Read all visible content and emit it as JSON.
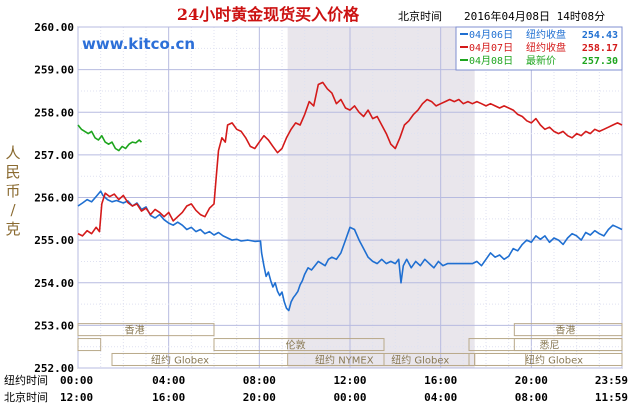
{
  "chart_data": {
    "type": "line",
    "title": "24小时黄金现货买入价格",
    "timestamp_label": "北京时间",
    "timestamp": "2016年04月08日 14时08分",
    "watermark": "www.kitco.cn",
    "ylabel": "人民币/克",
    "ylim": [
      252.0,
      260.0
    ],
    "y_ticks": [
      "252.00",
      "253.00",
      "254.00",
      "255.00",
      "256.00",
      "257.00",
      "258.00",
      "259.00",
      "260.00"
    ],
    "x_rows": [
      {
        "label": "纽约时间",
        "ticks": [
          "00:00",
          "04:00",
          "08:00",
          "12:00",
          "16:00",
          "20:00",
          "23:59"
        ]
      },
      {
        "label": "北京时间",
        "ticks": [
          "12:00",
          "16:00",
          "20:00",
          "00:00",
          "04:00",
          "08:00",
          "11:59"
        ]
      }
    ],
    "x_range_hours": [
      0,
      24
    ],
    "shaded_hours": [
      9.25,
      17.5
    ],
    "grid": true,
    "legend_position": "top-right",
    "legend": [
      {
        "date": "04月06日",
        "label": "纽约收盘",
        "value": "254.43",
        "color": "#1f6fd1"
      },
      {
        "date": "04月07日",
        "label": "纽约收盘",
        "value": "258.17",
        "color": "#d41a1a"
      },
      {
        "date": "04月08日",
        "label": "最新价",
        "value": "257.30",
        "color": "#1ea51e"
      }
    ],
    "sessions": [
      {
        "name": "香港",
        "row": 1,
        "blocks": [
          [
            0,
            6
          ],
          [
            19.25,
            24
          ]
        ],
        "labels_at": [
          2.5,
          21.5
        ]
      },
      {
        "name": "伦敦",
        "row": 2,
        "blocks": [
          [
            0,
            1
          ],
          [
            6,
            13.5
          ],
          [
            19.25,
            24
          ]
        ],
        "labels_at": [
          9.6
        ]
      },
      {
        "name": "悉尼",
        "row": 2,
        "blocks": [
          [
            17.25,
            24
          ]
        ],
        "labels_at": [
          20.8
        ]
      },
      {
        "name": "纽约 Globex",
        "row": 3,
        "blocks": [
          [
            1.5,
            13.5
          ],
          [
            17.25,
            24
          ]
        ],
        "labels_at": [
          4.5,
          21.0
        ]
      },
      {
        "name": "纽约 NYMEX",
        "row": 3,
        "blocks": [
          [
            9.25,
            17.5
          ]
        ],
        "labels_at": [
          11.75
        ]
      },
      {
        "name": "纽约 Globex",
        "row": 3,
        "blocks": [
          [
            17.5,
            19.75
          ]
        ],
        "labels_at": [
          15.1
        ]
      }
    ],
    "series": [
      {
        "name": "04月06日",
        "color": "#1f6fd1",
        "points": [
          [
            0.0,
            255.8
          ],
          [
            0.2,
            255.87
          ],
          [
            0.4,
            255.95
          ],
          [
            0.6,
            255.9
          ],
          [
            0.8,
            256.02
          ],
          [
            1.0,
            256.15
          ],
          [
            1.1,
            256.05
          ],
          [
            1.3,
            255.95
          ],
          [
            1.5,
            255.9
          ],
          [
            1.7,
            255.93
          ],
          [
            2.0,
            255.87
          ],
          [
            2.2,
            255.92
          ],
          [
            2.4,
            255.8
          ],
          [
            2.6,
            255.87
          ],
          [
            2.8,
            255.72
          ],
          [
            3.0,
            255.78
          ],
          [
            3.2,
            255.58
          ],
          [
            3.4,
            255.52
          ],
          [
            3.6,
            255.6
          ],
          [
            3.8,
            255.48
          ],
          [
            4.0,
            255.4
          ],
          [
            4.2,
            255.35
          ],
          [
            4.4,
            255.42
          ],
          [
            4.6,
            255.35
          ],
          [
            4.8,
            255.25
          ],
          [
            5.0,
            255.3
          ],
          [
            5.2,
            255.2
          ],
          [
            5.4,
            255.25
          ],
          [
            5.6,
            255.15
          ],
          [
            5.8,
            255.2
          ],
          [
            6.0,
            255.12
          ],
          [
            6.2,
            255.18
          ],
          [
            6.4,
            255.1
          ],
          [
            6.6,
            255.05
          ],
          [
            6.8,
            255.0
          ],
          [
            7.0,
            255.02
          ],
          [
            7.2,
            254.98
          ],
          [
            7.5,
            255.0
          ],
          [
            7.8,
            254.97
          ],
          [
            8.05,
            254.98
          ],
          [
            8.1,
            254.7
          ],
          [
            8.2,
            254.4
          ],
          [
            8.3,
            254.15
          ],
          [
            8.4,
            254.25
          ],
          [
            8.5,
            254.05
          ],
          [
            8.6,
            253.9
          ],
          [
            8.7,
            254.0
          ],
          [
            8.8,
            253.8
          ],
          [
            8.9,
            253.7
          ],
          [
            9.0,
            253.78
          ],
          [
            9.1,
            253.55
          ],
          [
            9.2,
            253.4
          ],
          [
            9.3,
            253.35
          ],
          [
            9.4,
            253.55
          ],
          [
            9.5,
            253.65
          ],
          [
            9.6,
            253.72
          ],
          [
            9.7,
            253.8
          ],
          [
            9.8,
            253.95
          ],
          [
            9.9,
            254.05
          ],
          [
            10.0,
            254.2
          ],
          [
            10.15,
            254.35
          ],
          [
            10.3,
            254.3
          ],
          [
            10.45,
            254.4
          ],
          [
            10.6,
            254.5
          ],
          [
            10.75,
            254.45
          ],
          [
            10.9,
            254.4
          ],
          [
            11.05,
            254.55
          ],
          [
            11.2,
            254.6
          ],
          [
            11.4,
            254.55
          ],
          [
            11.6,
            254.7
          ],
          [
            11.8,
            255.0
          ],
          [
            12.0,
            255.3
          ],
          [
            12.2,
            255.25
          ],
          [
            12.4,
            255.0
          ],
          [
            12.6,
            254.8
          ],
          [
            12.8,
            254.6
          ],
          [
            13.0,
            254.5
          ],
          [
            13.2,
            254.45
          ],
          [
            13.4,
            254.55
          ],
          [
            13.6,
            254.45
          ],
          [
            13.8,
            254.5
          ],
          [
            14.0,
            254.45
          ],
          [
            14.15,
            254.55
          ],
          [
            14.25,
            254.0
          ],
          [
            14.35,
            254.4
          ],
          [
            14.5,
            254.55
          ],
          [
            14.7,
            254.35
          ],
          [
            14.9,
            254.5
          ],
          [
            15.1,
            254.4
          ],
          [
            15.3,
            254.55
          ],
          [
            15.5,
            254.45
          ],
          [
            15.7,
            254.35
          ],
          [
            15.9,
            254.5
          ],
          [
            16.1,
            254.4
          ],
          [
            16.3,
            254.45
          ],
          [
            16.6,
            254.45
          ],
          [
            17.0,
            254.45
          ],
          [
            17.4,
            254.45
          ],
          [
            17.6,
            254.5
          ],
          [
            17.8,
            254.4
          ],
          [
            18.0,
            254.55
          ],
          [
            18.2,
            254.7
          ],
          [
            18.4,
            254.6
          ],
          [
            18.6,
            254.65
          ],
          [
            18.8,
            254.55
          ],
          [
            19.0,
            254.62
          ],
          [
            19.2,
            254.8
          ],
          [
            19.4,
            254.75
          ],
          [
            19.6,
            254.9
          ],
          [
            19.8,
            255.0
          ],
          [
            20.0,
            254.95
          ],
          [
            20.2,
            255.1
          ],
          [
            20.4,
            255.02
          ],
          [
            20.6,
            255.1
          ],
          [
            20.8,
            254.95
          ],
          [
            21.0,
            255.05
          ],
          [
            21.2,
            255.0
          ],
          [
            21.4,
            254.9
          ],
          [
            21.6,
            255.05
          ],
          [
            21.8,
            255.15
          ],
          [
            22.0,
            255.1
          ],
          [
            22.2,
            255.0
          ],
          [
            22.4,
            255.18
          ],
          [
            22.6,
            255.12
          ],
          [
            22.8,
            255.22
          ],
          [
            23.0,
            255.15
          ],
          [
            23.2,
            255.1
          ],
          [
            23.4,
            255.25
          ],
          [
            23.6,
            255.35
          ],
          [
            23.8,
            255.3
          ],
          [
            24.0,
            255.25
          ]
        ]
      },
      {
        "name": "04月07日",
        "color": "#d41a1a",
        "points": [
          [
            0.0,
            255.15
          ],
          [
            0.2,
            255.1
          ],
          [
            0.4,
            255.22
          ],
          [
            0.6,
            255.15
          ],
          [
            0.8,
            255.3
          ],
          [
            0.95,
            255.2
          ],
          [
            1.05,
            255.85
          ],
          [
            1.2,
            256.1
          ],
          [
            1.4,
            256.02
          ],
          [
            1.6,
            256.08
          ],
          [
            1.8,
            255.95
          ],
          [
            2.0,
            256.05
          ],
          [
            2.2,
            255.88
          ],
          [
            2.4,
            255.8
          ],
          [
            2.6,
            255.85
          ],
          [
            2.8,
            255.68
          ],
          [
            3.0,
            255.75
          ],
          [
            3.2,
            255.6
          ],
          [
            3.4,
            255.72
          ],
          [
            3.6,
            255.65
          ],
          [
            3.8,
            255.55
          ],
          [
            4.0,
            255.65
          ],
          [
            4.2,
            255.45
          ],
          [
            4.4,
            255.55
          ],
          [
            4.6,
            255.65
          ],
          [
            4.8,
            255.8
          ],
          [
            5.0,
            255.85
          ],
          [
            5.2,
            255.7
          ],
          [
            5.4,
            255.6
          ],
          [
            5.6,
            255.55
          ],
          [
            5.8,
            255.75
          ],
          [
            6.0,
            255.85
          ],
          [
            6.1,
            256.5
          ],
          [
            6.2,
            257.1
          ],
          [
            6.35,
            257.4
          ],
          [
            6.5,
            257.3
          ],
          [
            6.6,
            257.7
          ],
          [
            6.8,
            257.75
          ],
          [
            7.0,
            257.6
          ],
          [
            7.2,
            257.55
          ],
          [
            7.4,
            257.4
          ],
          [
            7.6,
            257.2
          ],
          [
            7.8,
            257.15
          ],
          [
            8.0,
            257.3
          ],
          [
            8.2,
            257.45
          ],
          [
            8.4,
            257.35
          ],
          [
            8.6,
            257.2
          ],
          [
            8.8,
            257.05
          ],
          [
            9.0,
            257.15
          ],
          [
            9.2,
            257.4
          ],
          [
            9.4,
            257.6
          ],
          [
            9.6,
            257.75
          ],
          [
            9.8,
            257.7
          ],
          [
            10.0,
            257.95
          ],
          [
            10.2,
            258.25
          ],
          [
            10.4,
            258.15
          ],
          [
            10.6,
            258.65
          ],
          [
            10.8,
            258.7
          ],
          [
            11.0,
            258.55
          ],
          [
            11.2,
            258.45
          ],
          [
            11.4,
            258.2
          ],
          [
            11.6,
            258.3
          ],
          [
            11.8,
            258.1
          ],
          [
            12.0,
            258.05
          ],
          [
            12.2,
            258.15
          ],
          [
            12.4,
            258.0
          ],
          [
            12.6,
            257.9
          ],
          [
            12.8,
            258.05
          ],
          [
            13.0,
            257.85
          ],
          [
            13.2,
            257.9
          ],
          [
            13.4,
            257.7
          ],
          [
            13.6,
            257.5
          ],
          [
            13.8,
            257.25
          ],
          [
            14.0,
            257.15
          ],
          [
            14.2,
            257.4
          ],
          [
            14.4,
            257.7
          ],
          [
            14.6,
            257.8
          ],
          [
            14.8,
            257.95
          ],
          [
            15.0,
            258.05
          ],
          [
            15.2,
            258.2
          ],
          [
            15.4,
            258.3
          ],
          [
            15.6,
            258.25
          ],
          [
            15.8,
            258.15
          ],
          [
            16.0,
            258.2
          ],
          [
            16.2,
            258.25
          ],
          [
            16.4,
            258.3
          ],
          [
            16.6,
            258.25
          ],
          [
            16.8,
            258.3
          ],
          [
            17.0,
            258.2
          ],
          [
            17.2,
            258.25
          ],
          [
            17.4,
            258.2
          ],
          [
            17.6,
            258.25
          ],
          [
            17.8,
            258.2
          ],
          [
            18.0,
            258.15
          ],
          [
            18.2,
            258.2
          ],
          [
            18.4,
            258.15
          ],
          [
            18.6,
            258.1
          ],
          [
            18.8,
            258.15
          ],
          [
            19.0,
            258.1
          ],
          [
            19.2,
            258.05
          ],
          [
            19.4,
            257.95
          ],
          [
            19.6,
            257.9
          ],
          [
            19.8,
            257.8
          ],
          [
            20.0,
            257.75
          ],
          [
            20.2,
            257.85
          ],
          [
            20.4,
            257.7
          ],
          [
            20.6,
            257.6
          ],
          [
            20.8,
            257.65
          ],
          [
            21.0,
            257.55
          ],
          [
            21.2,
            257.5
          ],
          [
            21.4,
            257.55
          ],
          [
            21.6,
            257.45
          ],
          [
            21.8,
            257.4
          ],
          [
            22.0,
            257.5
          ],
          [
            22.2,
            257.45
          ],
          [
            22.4,
            257.55
          ],
          [
            22.6,
            257.5
          ],
          [
            22.8,
            257.6
          ],
          [
            23.0,
            257.55
          ],
          [
            23.2,
            257.6
          ],
          [
            23.4,
            257.65
          ],
          [
            23.6,
            257.7
          ],
          [
            23.8,
            257.75
          ],
          [
            24.0,
            257.7
          ]
        ]
      },
      {
        "name": "04月08日",
        "color": "#1ea51e",
        "points": [
          [
            0.0,
            257.7
          ],
          [
            0.15,
            257.6
          ],
          [
            0.3,
            257.55
          ],
          [
            0.45,
            257.5
          ],
          [
            0.6,
            257.55
          ],
          [
            0.75,
            257.4
          ],
          [
            0.9,
            257.35
          ],
          [
            1.05,
            257.45
          ],
          [
            1.2,
            257.3
          ],
          [
            1.35,
            257.25
          ],
          [
            1.5,
            257.3
          ],
          [
            1.65,
            257.15
          ],
          [
            1.8,
            257.1
          ],
          [
            1.95,
            257.2
          ],
          [
            2.1,
            257.15
          ],
          [
            2.25,
            257.25
          ],
          [
            2.4,
            257.3
          ],
          [
            2.55,
            257.28
          ],
          [
            2.7,
            257.35
          ],
          [
            2.8,
            257.3
          ]
        ]
      }
    ]
  }
}
